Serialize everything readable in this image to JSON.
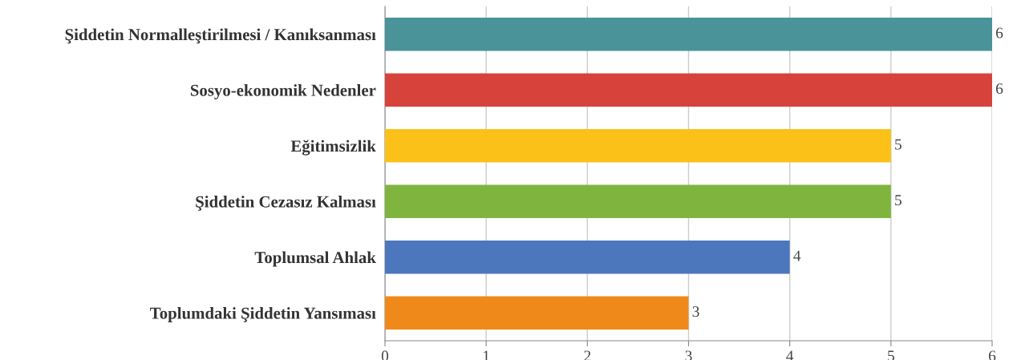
{
  "chart_data": {
    "type": "bar",
    "orientation": "horizontal",
    "categories": [
      "Şiddetin Normalleştirilmesi / Kanıksanması",
      "Sosyo-ekonomik Nedenler",
      "Eğitimsizlik",
      "Şiddetin Cezasız Kalması",
      "Toplumsal Ahlak",
      "Toplumdaki Şiddetin Yansıması"
    ],
    "values": [
      6,
      6,
      5,
      5,
      4,
      3
    ],
    "colors": [
      "#4a9399",
      "#d7433b",
      "#fcc118",
      "#7fb53f",
      "#4d77bd",
      "#ef8a1a"
    ],
    "xlim": [
      0,
      6
    ],
    "xticks": [
      0,
      1,
      2,
      3,
      4,
      5,
      6
    ],
    "grid": "x",
    "data_labels": true
  }
}
